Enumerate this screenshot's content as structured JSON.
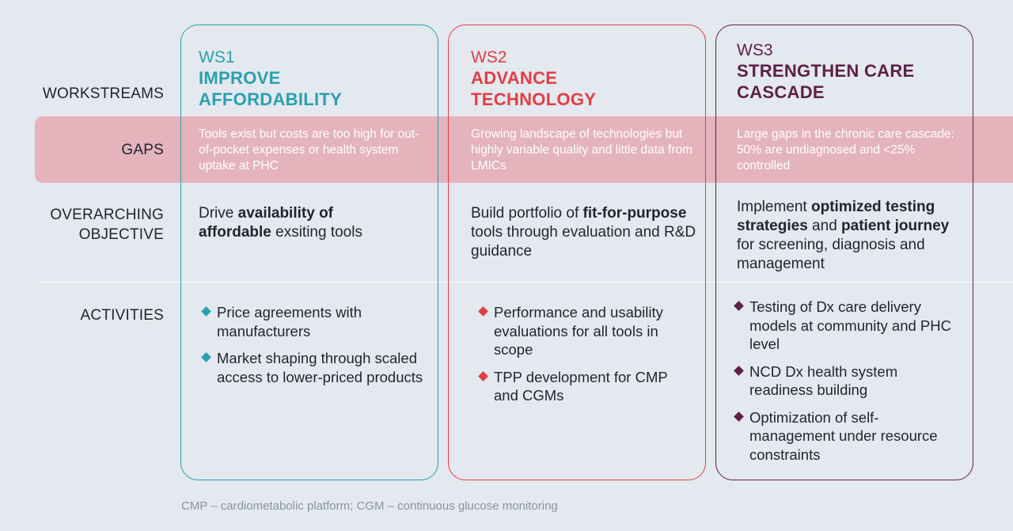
{
  "row_labels": {
    "workstreams": "WORKSTREAMS",
    "gaps": "GAPS",
    "objective_line1": "OVERARCHING",
    "objective_line2": "OBJECTIVE",
    "activities": "ACTIVITIES"
  },
  "workstreams": [
    {
      "code": "WS1",
      "title_line1": "IMPROVE",
      "title_line2": "AFFORDABILITY",
      "color": "#2a9fb1",
      "gap_text": "Tools exist but costs are too high for out-of-pocket expenses or health system uptake at PHC",
      "objective": [
        {
          "text": "Drive ",
          "bold": false
        },
        {
          "text": "availability of affordable",
          "bold": true
        },
        {
          "text": " exsiting tools",
          "bold": false
        }
      ],
      "activities": [
        "Price agreements with manufacturers",
        "Market shaping through scaled access to lower-priced products"
      ]
    },
    {
      "code": "WS2",
      "title_line1": "ADVANCE",
      "title_line2": "TECHNOLOGY",
      "color": "#e43d46",
      "gap_text": "Growing landscape of technologies but highly variable quality and little data from LMICs",
      "objective": [
        {
          "text": "Build portfolio of ",
          "bold": false
        },
        {
          "text": "fit-for-purpose",
          "bold": true
        },
        {
          "text": " tools through evaluation and R&D guidance",
          "bold": false
        }
      ],
      "activities": [
        "Performance and usability evaluations for all tools in scope",
        "TPP development for CMP and CGMs"
      ]
    },
    {
      "code": "WS3",
      "title_line1": "STRENGTHEN CARE",
      "title_line2": "CASCADE",
      "color": "#5e1f48",
      "gap_text": "Large gaps in the chronic care cascade: 50% are undiagnosed and <25% controlled",
      "objective": [
        {
          "text": "Implement ",
          "bold": false
        },
        {
          "text": "optimized testing strategies",
          "bold": true
        },
        {
          "text": " and ",
          "bold": false
        },
        {
          "text": "patient journey",
          "bold": true
        },
        {
          "text": " for screening, diagnosis and management",
          "bold": false
        }
      ],
      "activities": [
        "Testing of Dx care delivery models at community and PHC level",
        "NCD Dx health system readiness building",
        "Optimization of self-management under resource constraints"
      ]
    }
  ],
  "footnote": "CMP – cardiometabolic platform; CGM – continuous glucose monitoring"
}
